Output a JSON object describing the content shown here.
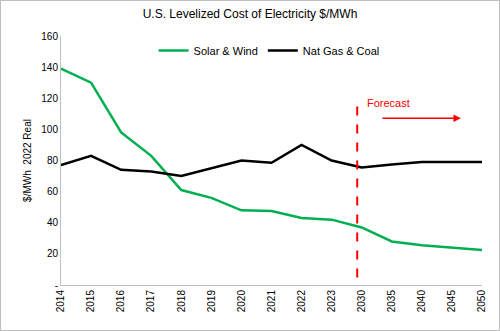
{
  "chart_data": {
    "type": "line",
    "title": "U.S. Levelized Cost of Electricity $/MWh",
    "y_label": "$/MWh  2022 Real",
    "categories": [
      "2014",
      "2015",
      "2016",
      "2017",
      "2018",
      "2019",
      "2020",
      "2021",
      "2022",
      "2023",
      "2030",
      "2035",
      "2040",
      "2045",
      "2050"
    ],
    "series": [
      {
        "name": "Solar & Wind",
        "color": "#00b050",
        "values": [
          139,
          130,
          98,
          83,
          61,
          56,
          48,
          47.5,
          43,
          42,
          37,
          28,
          25.5,
          24,
          22.5
        ]
      },
      {
        "name": "Nat Gas & Coal",
        "color": "#000000",
        "values": [
          77,
          83,
          74,
          73,
          70,
          75,
          80,
          78.5,
          90,
          80,
          75.5,
          77.5,
          79,
          79,
          79
        ]
      }
    ],
    "ylim": [
      0,
      160
    ],
    "yticks": [
      {
        "value": 0,
        "label": "-"
      },
      20,
      40,
      60,
      80,
      100,
      120,
      140,
      160
    ],
    "grid": false,
    "legend": "top",
    "annotations": [
      {
        "text": "Forecast",
        "x": "2030"
      }
    ]
  }
}
